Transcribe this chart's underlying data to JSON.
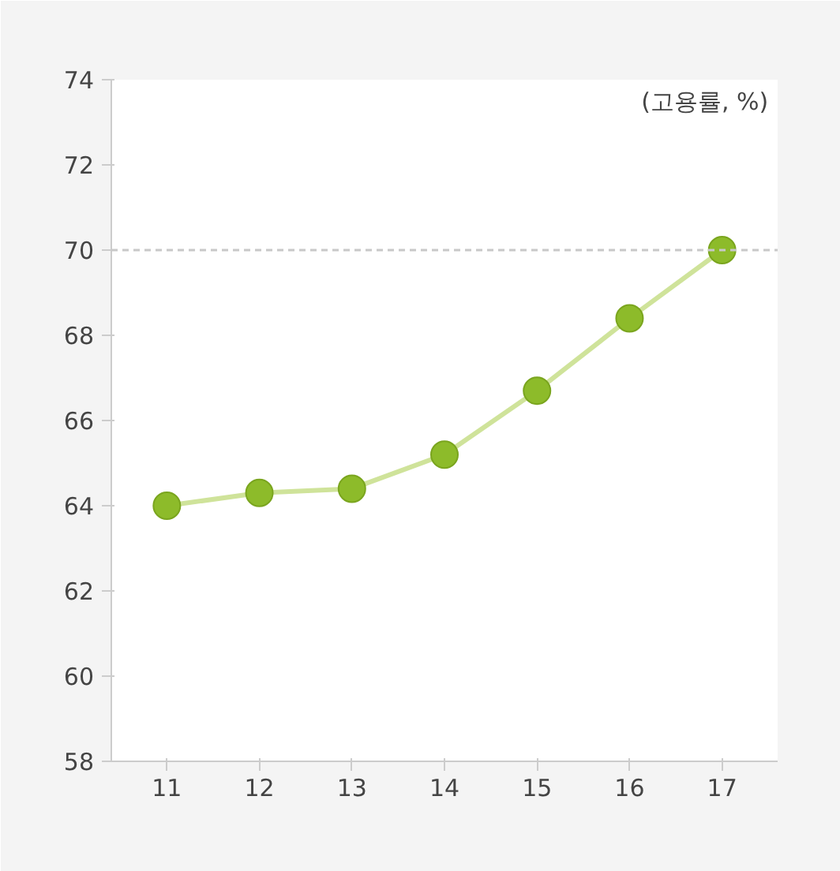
{
  "chart_data": {
    "type": "line",
    "categories": [
      "11",
      "12",
      "13",
      "14",
      "15",
      "16",
      "17"
    ],
    "series": [
      {
        "color": "#8dbb2a",
        "values": [
          64.0,
          64.3,
          64.4,
          65.2,
          66.7,
          68.4,
          70.0
        ]
      }
    ],
    "ylim": [
      58,
      74
    ],
    "yticks": [
      58,
      60,
      62,
      64,
      66,
      68,
      70,
      72,
      74
    ],
    "ref_lines": [
      {
        "axis": "y",
        "value": 70,
        "color": "#c8c8c8",
        "line_style": "dashed"
      }
    ],
    "annotations": [
      "(고용률, %)"
    ],
    "marker": "circle",
    "grid": false
  }
}
